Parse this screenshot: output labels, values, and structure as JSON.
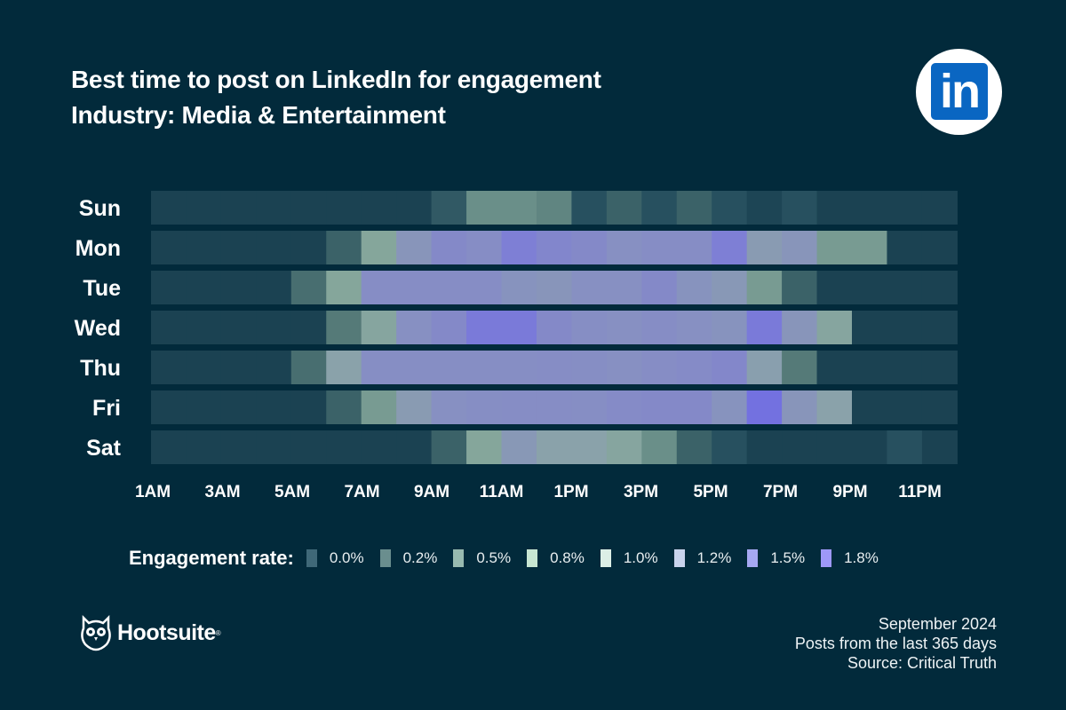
{
  "header": {
    "title": "Best time to post on LinkedIn for engagement",
    "subtitle": "Industry: Media & Entertainment",
    "logo_text": "in"
  },
  "chart_data": {
    "type": "heatmap",
    "rows": [
      "Sun",
      "Mon",
      "Tue",
      "Wed",
      "Thu",
      "Fri",
      "Sat"
    ],
    "columns": [
      "1AM",
      "2AM",
      "3AM",
      "4AM",
      "5AM",
      "6AM",
      "7AM",
      "8AM",
      "9AM",
      "10AM",
      "11AM",
      "12PM",
      "1PM",
      "2PM",
      "3PM",
      "4PM",
      "5PM",
      "6PM",
      "7PM",
      "8PM",
      "9PM",
      "10PM",
      "11PM"
    ],
    "x_tick_labels": [
      "1AM",
      "3AM",
      "5AM",
      "7AM",
      "9AM",
      "11AM",
      "1PM",
      "3PM",
      "5PM",
      "7PM",
      "9PM",
      "11PM"
    ],
    "value_unit": "%",
    "values": [
      [
        0,
        0,
        0,
        0,
        0,
        0,
        0,
        0,
        0.15,
        0.4,
        0.4,
        0.35,
        0.1,
        0.2,
        0.1,
        0.2,
        0.1,
        0.02,
        0.1,
        0,
        0,
        0,
        0
      ],
      [
        0,
        0,
        0,
        0,
        0,
        0.2,
        0.5,
        0.9,
        1.2,
        1.1,
        1.5,
        1.3,
        1.2,
        1.0,
        1.1,
        1.1,
        1.5,
        0.8,
        0.9,
        0.45,
        0.45,
        0,
        0
      ],
      [
        0,
        0,
        0,
        0,
        0.25,
        0.5,
        1.1,
        1.1,
        1.1,
        1.1,
        0.95,
        0.9,
        1.0,
        1.0,
        1.2,
        0.95,
        0.85,
        0.45,
        0.2,
        0,
        0,
        0,
        0
      ],
      [
        0,
        0,
        0,
        0,
        0,
        0.3,
        0.55,
        1.0,
        1.2,
        1.6,
        1.6,
        1.2,
        1.05,
        1.0,
        1.1,
        1.0,
        0.95,
        1.6,
        0.9,
        0.55,
        0,
        0,
        0
      ],
      [
        0,
        0,
        0,
        0,
        0.25,
        0.7,
        1.05,
        1.05,
        1.05,
        1.05,
        1.05,
        1.1,
        1.05,
        1.0,
        1.1,
        1.15,
        1.25,
        0.75,
        0.3,
        0,
        0,
        0,
        0
      ],
      [
        0,
        0,
        0,
        0,
        0,
        0.2,
        0.45,
        0.8,
        1.0,
        1.05,
        1.1,
        1.1,
        1.05,
        1.15,
        1.2,
        1.2,
        0.95,
        1.8,
        0.9,
        0.7,
        0,
        0,
        0
      ],
      [
        0,
        0,
        0,
        0,
        0,
        0,
        0,
        0,
        0.2,
        0.5,
        0.85,
        0.7,
        0.7,
        0.55,
        0.4,
        0.2,
        0.1,
        0,
        0,
        0,
        0,
        0.1,
        0
      ]
    ],
    "legend": {
      "title": "Engagement rate:",
      "items": [
        {
          "label": "0.0%",
          "color": "#3f6878"
        },
        {
          "label": "0.2%",
          "color": "#6a8e8e"
        },
        {
          "label": "0.5%",
          "color": "#98bab0"
        },
        {
          "label": "0.8%",
          "color": "#c8e6d2"
        },
        {
          "label": "1.0%",
          "color": "#dcefe6"
        },
        {
          "label": "1.2%",
          "color": "#c9d3ec"
        },
        {
          "label": "1.5%",
          "color": "#a6a8f2"
        },
        {
          "label": "1.8%",
          "color": "#9e98f8"
        }
      ]
    },
    "legend_position": "bottom",
    "grid": false
  },
  "branding": {
    "name": "Hootsuite",
    "reg": "®"
  },
  "footer": {
    "date": "September 2024",
    "period": "Posts from the last 365 days",
    "source": "Source: Critical Truth"
  }
}
